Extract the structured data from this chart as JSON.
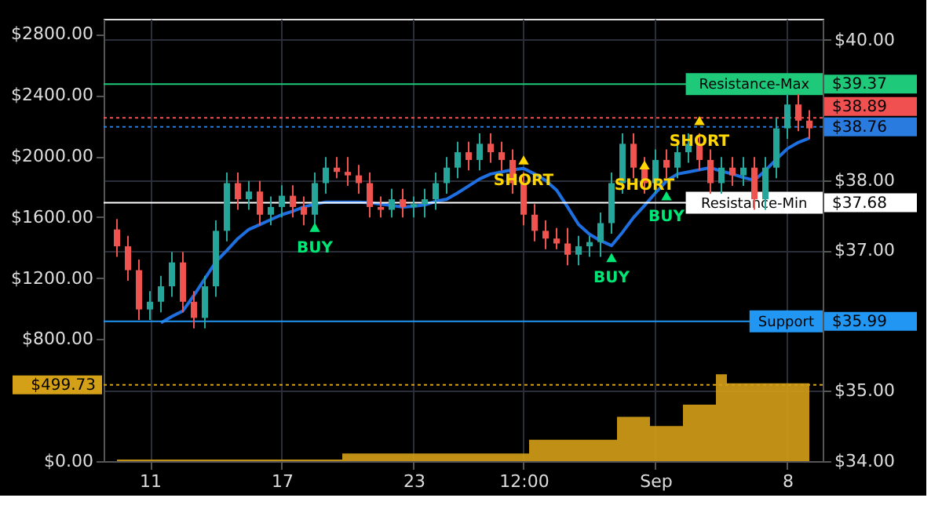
{
  "chart_data": {
    "type": "candlestick",
    "categories": [
      null,
      null,
      null,
      "11",
      null,
      null,
      null,
      null,
      null,
      null,
      null,
      null,
      null,
      null,
      null,
      "17",
      null,
      null,
      null,
      null,
      null,
      null,
      null,
      null,
      null,
      null,
      null,
      "23",
      null,
      null,
      null,
      null,
      null,
      null,
      null,
      null,
      null,
      "12:00",
      null,
      null,
      null,
      null,
      null,
      null,
      null,
      null,
      null,
      null,
      null,
      "Sep",
      null,
      null,
      null,
      null,
      null,
      null,
      null,
      null,
      null,
      null,
      null,
      "8",
      null,
      null
    ],
    "ohlc": [
      [
        37.3,
        37.45,
        36.91,
        37.06
      ],
      [
        37.06,
        37.21,
        36.57,
        36.72
      ],
      [
        36.72,
        36.87,
        36.01,
        36.16
      ],
      [
        36.16,
        36.42,
        36.01,
        36.27
      ],
      [
        36.27,
        36.64,
        36.12,
        36.49
      ],
      [
        36.49,
        36.98,
        36.34,
        36.83
      ],
      [
        36.83,
        36.98,
        36.12,
        36.27
      ],
      [
        36.27,
        36.42,
        35.89,
        36.04
      ],
      [
        36.04,
        36.64,
        35.89,
        36.49
      ],
      [
        36.49,
        37.43,
        36.34,
        37.28
      ],
      [
        37.28,
        38.11,
        37.13,
        37.96
      ],
      [
        37.96,
        38.11,
        37.58,
        37.73
      ],
      [
        37.73,
        37.99,
        37.58,
        37.84
      ],
      [
        37.84,
        37.99,
        37.36,
        37.51
      ],
      [
        37.51,
        37.77,
        37.36,
        37.62
      ],
      [
        37.62,
        37.93,
        37.47,
        37.78
      ],
      [
        37.78,
        37.93,
        37.47,
        37.62
      ],
      [
        37.62,
        37.77,
        37.36,
        37.51
      ],
      [
        37.51,
        38.11,
        37.36,
        37.96
      ],
      [
        37.96,
        38.33,
        37.81,
        38.18
      ],
      [
        38.18,
        38.33,
        38.03,
        38.12
      ],
      [
        38.12,
        38.33,
        37.92,
        38.07
      ],
      [
        38.07,
        38.22,
        37.81,
        37.96
      ],
      [
        37.96,
        38.11,
        37.47,
        37.62
      ],
      [
        37.62,
        37.77,
        37.47,
        37.58
      ],
      [
        37.58,
        37.88,
        37.47,
        37.73
      ],
      [
        37.73,
        37.88,
        37.47,
        37.62
      ],
      [
        37.62,
        37.77,
        37.47,
        37.66
      ],
      [
        37.66,
        37.88,
        37.47,
        37.73
      ],
      [
        37.73,
        38.11,
        37.58,
        37.96
      ],
      [
        37.96,
        38.33,
        37.81,
        38.18
      ],
      [
        38.18,
        38.55,
        38.03,
        38.4
      ],
      [
        38.4,
        38.55,
        38.14,
        38.29
      ],
      [
        38.29,
        38.67,
        38.14,
        38.52
      ],
      [
        38.52,
        38.67,
        38.25,
        38.4
      ],
      [
        38.4,
        38.55,
        38.14,
        38.29
      ],
      [
        38.29,
        38.44,
        37.81,
        37.96
      ],
      [
        37.96,
        38.11,
        37.36,
        37.51
      ],
      [
        37.51,
        37.66,
        37.13,
        37.28
      ],
      [
        37.28,
        37.43,
        37.02,
        37.17
      ],
      [
        37.17,
        37.32,
        37.02,
        37.1
      ],
      [
        37.1,
        37.32,
        36.79,
        36.94
      ],
      [
        36.94,
        37.21,
        36.79,
        37.06
      ],
      [
        37.06,
        37.21,
        36.91,
        37.12
      ],
      [
        37.12,
        37.54,
        36.91,
        37.39
      ],
      [
        37.39,
        38.11,
        37.24,
        37.96
      ],
      [
        37.96,
        38.67,
        37.81,
        38.52
      ],
      [
        38.52,
        38.67,
        38.03,
        38.18
      ],
      [
        38.18,
        38.33,
        37.81,
        37.96
      ],
      [
        37.96,
        38.44,
        37.81,
        38.29
      ],
      [
        38.29,
        38.44,
        38.03,
        38.18
      ],
      [
        38.18,
        38.55,
        38.03,
        38.4
      ],
      [
        38.4,
        38.67,
        38.25,
        38.52
      ],
      [
        38.52,
        38.67,
        38.14,
        38.29
      ],
      [
        38.29,
        38.44,
        37.81,
        37.96
      ],
      [
        37.96,
        38.33,
        37.81,
        38.18
      ],
      [
        38.18,
        38.33,
        37.92,
        38.07
      ],
      [
        38.07,
        38.33,
        37.92,
        38.18
      ],
      [
        38.18,
        38.33,
        37.58,
        37.73
      ],
      [
        37.73,
        38.33,
        37.58,
        38.18
      ],
      [
        38.18,
        38.89,
        38.03,
        38.74
      ],
      [
        38.74,
        39.23,
        38.59,
        39.08
      ],
      [
        39.08,
        39.23,
        38.7,
        38.85
      ],
      [
        38.85,
        39.0,
        38.59,
        38.74
      ]
    ],
    "series": [
      {
        "type": "line",
        "color": "#1e6fe0",
        "values": [
          null,
          null,
          null,
          null,
          35.97,
          36.06,
          36.14,
          36.36,
          36.6,
          36.84,
          37.0,
          37.17,
          37.3,
          37.37,
          37.44,
          37.51,
          37.56,
          37.62,
          37.66,
          37.69,
          37.69,
          37.69,
          37.69,
          37.68,
          37.66,
          37.64,
          37.62,
          37.63,
          37.65,
          37.7,
          37.73,
          37.82,
          37.92,
          38.02,
          38.09,
          38.12,
          38.15,
          38.17,
          38.09,
          38.0,
          37.86,
          37.62,
          37.37,
          37.23,
          37.14,
          37.07,
          37.26,
          37.47,
          37.64,
          37.82,
          37.99,
          38.09,
          38.12,
          38.15,
          38.18,
          38.13,
          38.09,
          38.04,
          38.0,
          38.14,
          38.3,
          38.45,
          38.54,
          38.6
        ]
      },
      {
        "type": "area",
        "axis": "y2",
        "color": "#d4a017",
        "values": [
          10,
          10,
          10,
          10,
          10,
          10,
          10,
          10,
          10,
          10,
          10,
          10,
          10,
          10,
          10,
          10,
          10,
          10,
          10,
          10,
          10,
          50,
          50,
          50,
          50,
          50,
          50,
          50,
          50,
          50,
          50,
          50,
          50,
          50,
          50,
          50,
          50,
          50,
          140,
          140,
          140,
          140,
          140,
          140,
          140,
          140,
          290,
          290,
          290,
          230,
          230,
          230,
          370,
          370,
          370,
          570,
          510,
          510,
          510,
          510,
          510,
          510,
          510,
          510
        ]
      },
      {
        "type": "scatter",
        "name": "BUY",
        "color": "#00e676",
        "marker": "triangle",
        "values": [
          null,
          null,
          null,
          null,
          null,
          null,
          null,
          null,
          null,
          null,
          null,
          null,
          null,
          null,
          null,
          null,
          null,
          null,
          37.33,
          null,
          null,
          null,
          null,
          null,
          null,
          null,
          null,
          null,
          null,
          null,
          null,
          null,
          null,
          null,
          null,
          null,
          null,
          null,
          null,
          null,
          null,
          null,
          null,
          null,
          null,
          36.9,
          null,
          null,
          null,
          null,
          37.78,
          null,
          null,
          null,
          null,
          null,
          null,
          null,
          null,
          null,
          null,
          null,
          null,
          null
        ]
      },
      {
        "type": "scatter",
        "name": "SHORT",
        "color": "#ffd600",
        "marker": "triangle",
        "values": [
          null,
          null,
          null,
          null,
          null,
          null,
          null,
          null,
          null,
          null,
          null,
          null,
          null,
          null,
          null,
          null,
          null,
          null,
          null,
          null,
          null,
          null,
          null,
          null,
          null,
          null,
          null,
          null,
          null,
          null,
          null,
          null,
          null,
          null,
          null,
          null,
          null,
          38.29,
          null,
          null,
          null,
          null,
          null,
          null,
          null,
          null,
          null,
          null,
          38.22,
          null,
          null,
          null,
          null,
          38.85,
          null,
          null,
          null,
          null,
          null,
          null,
          null,
          null,
          null,
          null
        ]
      }
    ],
    "ylim": [
      34,
      40.3
    ],
    "yticks": [
      {
        "value": 34,
        "label": "$34.00"
      },
      {
        "value": 35,
        "label": "$35.00"
      },
      {
        "value": 35.99,
        "label": "$35.99"
      },
      {
        "value": 37,
        "label": "$37.00"
      },
      {
        "value": 37.68,
        "label": "$37.68"
      },
      {
        "value": 38,
        "label": "$38.00"
      },
      {
        "value": 38.76,
        "label": "$38.76"
      },
      {
        "value": 38.89,
        "label": "$38.89"
      },
      {
        "value": 39.37,
        "label": "$39.37"
      },
      {
        "value": 40,
        "label": "$40.00"
      }
    ],
    "y2lim": [
      0,
      2900
    ],
    "y2ticks": [
      {
        "value": 0,
        "label": "$0.00"
      },
      {
        "value": 499.73,
        "label": "$499.73"
      },
      {
        "value": 800,
        "label": "$800.00"
      },
      {
        "value": 1200,
        "label": "$1200.00"
      },
      {
        "value": 1600,
        "label": "$1600.00"
      },
      {
        "value": 2000,
        "label": "$2000.00"
      },
      {
        "value": 2400,
        "label": "$2400.00"
      },
      {
        "value": 2800,
        "label": "$2800.00"
      }
    ],
    "ref_lines": [
      {
        "axis": "y",
        "value": 39.37,
        "label": "Resistance-Max",
        "color": "#1ec97a",
        "line_style": "solid"
      },
      {
        "axis": "y",
        "value": 38.89,
        "label": null,
        "color": "#f05050",
        "line_style": "dotted"
      },
      {
        "axis": "y",
        "value": 38.76,
        "label": null,
        "color": "#2a7be0",
        "line_style": "dotted"
      },
      {
        "axis": "y",
        "value": 37.68,
        "label": "Resistance-Min",
        "color": "#ffffff",
        "line_style": "solid"
      },
      {
        "axis": "y",
        "value": 35.99,
        "label": "Support",
        "color": "#2196f3",
        "line_style": "solid"
      },
      {
        "axis": "y2",
        "value": 499.73,
        "label": null,
        "color": "#d4a017",
        "line_style": "dotted"
      }
    ],
    "grid": true
  }
}
